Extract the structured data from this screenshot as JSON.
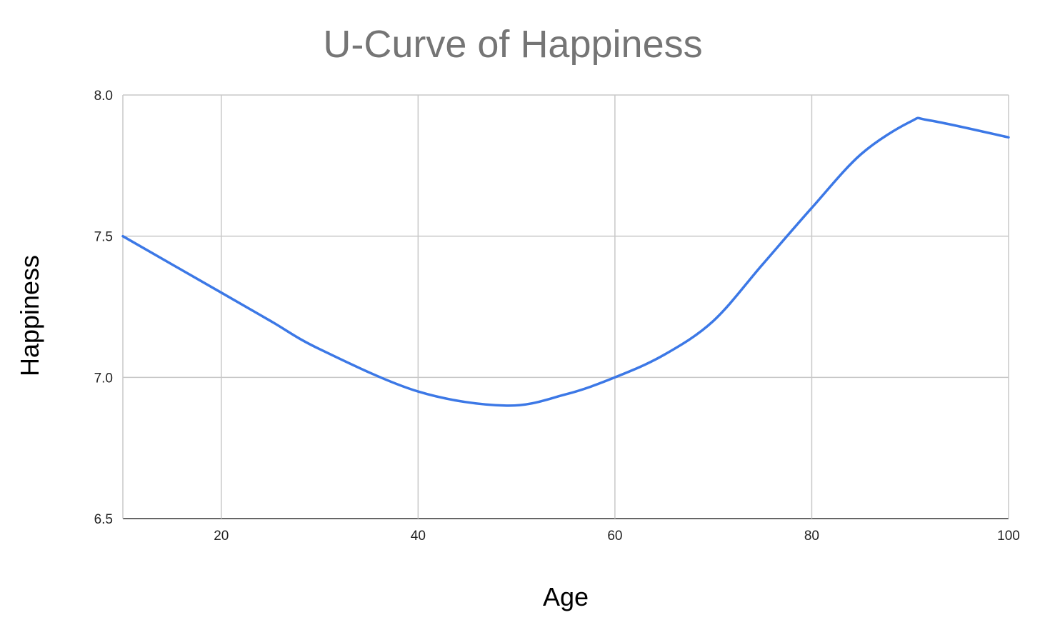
{
  "chart_data": {
    "type": "line",
    "title": "U-Curve of Happiness",
    "xlabel": "Age",
    "ylabel": "Happiness",
    "xlim": [
      10,
      100
    ],
    "ylim": [
      6.5,
      8.0
    ],
    "x_ticks": [
      "20",
      "40",
      "60",
      "80",
      "100"
    ],
    "y_ticks": [
      "8.0",
      "7.5",
      "7.0",
      "6.5"
    ],
    "grid": true,
    "legend": "none",
    "series": [
      {
        "color": "#3c78e6",
        "x": [
          10,
          20,
          25,
          30,
          40,
          49,
          55,
          60,
          65,
          70,
          75,
          80,
          85,
          90,
          92,
          100
        ],
        "y": [
          7.5,
          7.3,
          7.2,
          7.1,
          6.95,
          6.9,
          6.94,
          7.0,
          7.08,
          7.2,
          7.4,
          7.6,
          7.79,
          7.905,
          7.91,
          7.85
        ]
      }
    ]
  }
}
